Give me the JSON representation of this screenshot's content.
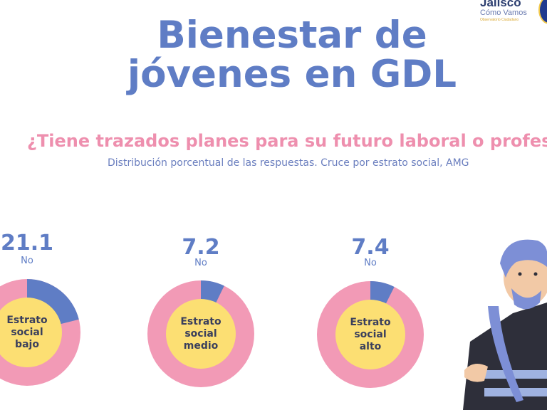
{
  "header": {
    "title_line1": "Bienestar de",
    "title_line2": "jóvenes en GDL",
    "logo_name": "Jalisco",
    "logo_sub": "Cómo Vamos",
    "logo_tag": "Observatorio Ciudadano"
  },
  "question": "¿Tiene trazados planes para su futuro laboral o profesio",
  "subtitle": "Distribución porcentual de las respuestas. Cruce por estrato social, AMG",
  "colors": {
    "no": "#5f7dc5",
    "yes": "#f29ab6",
    "center": "#fcdf73",
    "title": "#5f7dc5",
    "question": "#ee8fae"
  },
  "chart_data": {
    "type": "pie",
    "charts": [
      {
        "label": "Estrato social bajo",
        "no_value": "21.1",
        "no_label": "No",
        "no_pct": 21.1
      },
      {
        "label": "Estrato social medio",
        "no_value": "7.2",
        "no_label": "No",
        "no_pct": 7.2
      },
      {
        "label": "Estrato social alto",
        "no_value": "7.4",
        "no_label": "No",
        "no_pct": 7.4
      }
    ]
  },
  "center_lines": [
    [
      "Estrato",
      "social",
      "bajo"
    ],
    [
      "Estrato",
      "social",
      "medio"
    ],
    [
      "Estrato",
      "social",
      "alto"
    ]
  ]
}
